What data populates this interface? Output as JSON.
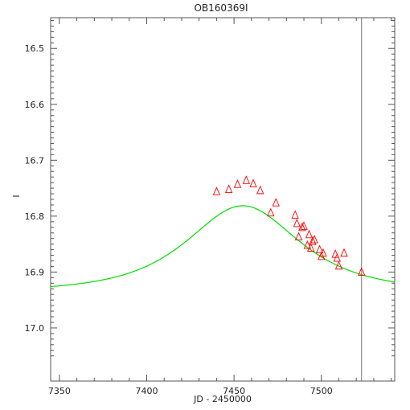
{
  "chart_data": {
    "type": "scatter",
    "title": "OB160369I",
    "xlabel": "JD - 2450000",
    "ylabel": "I",
    "xlim": [
      7345,
      7542
    ],
    "ylim": [
      16.445,
      17.095
    ],
    "y_inverted": true,
    "grid": false,
    "x_ticks": [
      7350,
      7400,
      7450,
      7500
    ],
    "y_ticks": [
      16.5,
      16.6,
      16.7,
      16.8,
      16.9,
      17.0
    ],
    "x_tick_labels": [
      "7350",
      "7400",
      "7450",
      "7500"
    ],
    "y_tick_labels": [
      "16.5",
      "16.6",
      "16.7",
      "16.8",
      "16.9",
      "17.0"
    ],
    "vertical_line_x": 7523,
    "observations": {
      "marker": "triangle-open",
      "color": "#ff0000",
      "x": [
        7440,
        7447,
        7452,
        7457,
        7461,
        7465,
        7471,
        7474,
        7485,
        7486,
        7487,
        7489,
        7490,
        7492,
        7493,
        7494,
        7495,
        7496,
        7499,
        7500,
        7501,
        7508,
        7509,
        7510,
        7513,
        7523
      ],
      "y": [
        16.756,
        16.752,
        16.743,
        16.736,
        16.742,
        16.754,
        16.794,
        16.776,
        16.798,
        16.813,
        16.837,
        16.82,
        16.818,
        16.852,
        16.833,
        16.857,
        16.845,
        16.842,
        16.86,
        16.872,
        16.866,
        16.868,
        16.875,
        16.889,
        16.866,
        16.9
      ]
    },
    "model": {
      "line": "solid",
      "color": "#00dd00",
      "t0": 7455,
      "u0": 0.95,
      "tE": 41.5,
      "fs": 0.4,
      "base_mag": 16.935
    }
  }
}
